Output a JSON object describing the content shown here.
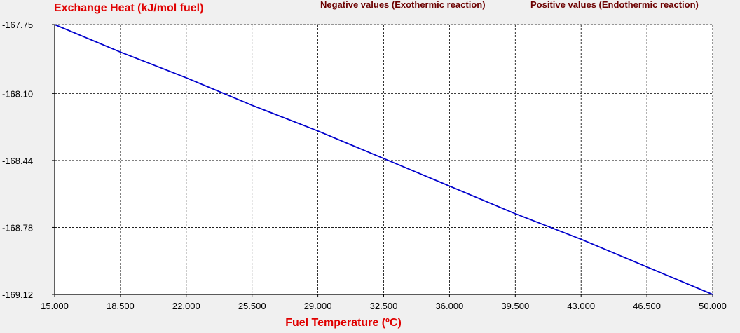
{
  "chart_data": {
    "type": "line",
    "title": "",
    "ylabel": "Exchange Heat (kJ/mol fuel)",
    "xlabel": "Fuel Temperature (ºC)",
    "annotations": [
      "Negative values (Exothermic reaction)",
      "Positive values (Endothermic reaction)"
    ],
    "xlim": [
      15.0,
      50.0
    ],
    "ylim": [
      -169.12,
      -167.75
    ],
    "x_ticks": [
      "15.000",
      "18.500",
      "22.000",
      "25.500",
      "29.000",
      "32.500",
      "36.000",
      "39.500",
      "43.000",
      "46.500",
      "50.000"
    ],
    "y_ticks": [
      "-167.75",
      "-168.10",
      "-168.44",
      "-168.78",
      "-169.12"
    ],
    "grid": true,
    "series": [
      {
        "color": "#0000cc",
        "x": [
          15.0,
          18.5,
          22.0,
          25.5,
          29.0,
          32.5,
          36.0,
          39.5,
          43.0,
          46.5,
          50.0
        ],
        "y": [
          -167.75,
          -167.89,
          -168.02,
          -168.16,
          -168.29,
          -168.43,
          -168.57,
          -168.71,
          -168.84,
          -168.98,
          -169.12
        ]
      }
    ]
  }
}
